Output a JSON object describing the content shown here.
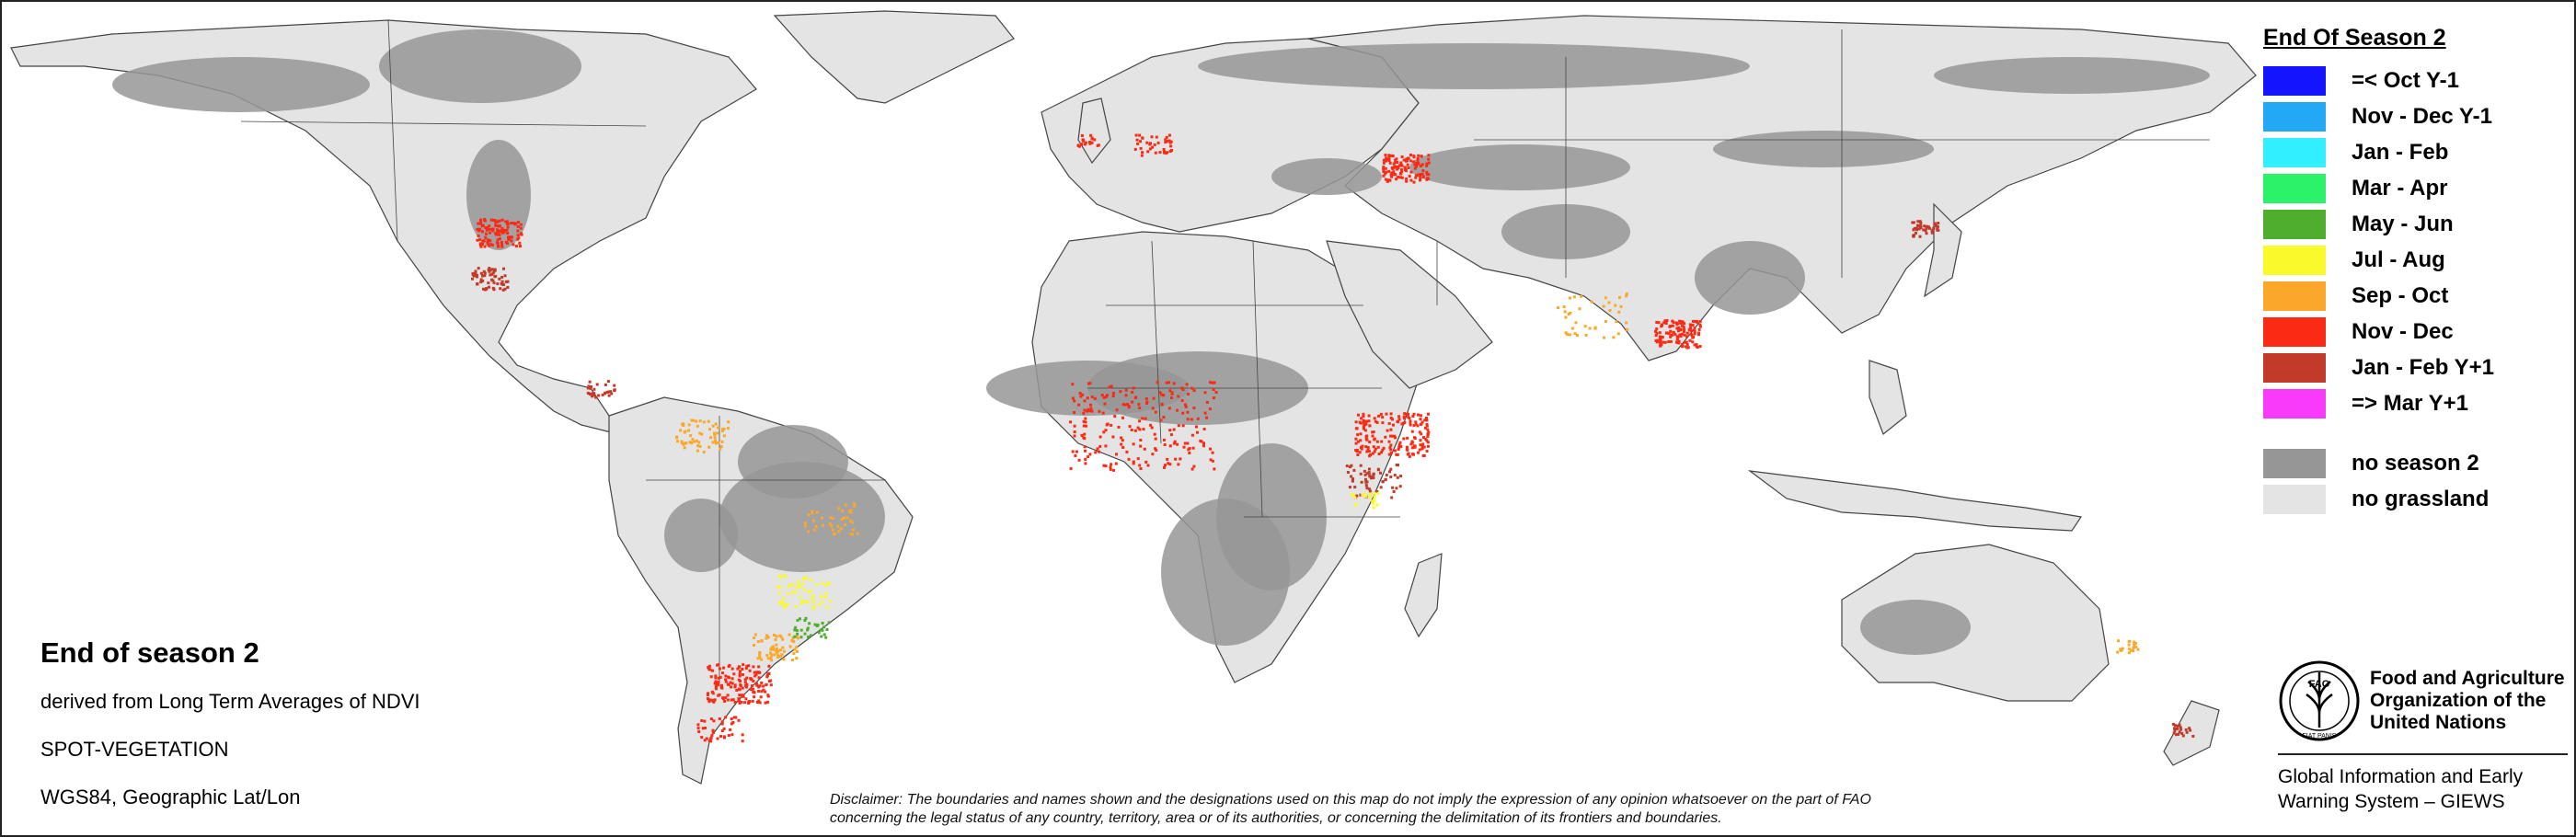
{
  "legend": {
    "title": "End Of Season 2",
    "items": [
      {
        "label": "=< Oct Y-1",
        "color": "#1414ff"
      },
      {
        "label": "Nov - Dec Y-1",
        "color": "#22a8f4"
      },
      {
        "label": "Jan - Feb",
        "color": "#32f0ff"
      },
      {
        "label": "Mar - Apr",
        "color": "#2cf26a"
      },
      {
        "label": "May - Jun",
        "color": "#4fae2e"
      },
      {
        "label": "Jul - Aug",
        "color": "#fafa2a"
      },
      {
        "label": "Sep - Oct",
        "color": "#fba82a"
      },
      {
        "label": "Nov - Dec",
        "color": "#fb2a14"
      },
      {
        "label": "Jan - Feb Y+1",
        "color": "#c23a2a"
      },
      {
        "label": "=> Mar Y+1",
        "color": "#fa3afa"
      }
    ],
    "extra": [
      {
        "label": "no season 2",
        "color": "#969696"
      },
      {
        "label": "no grassland",
        "color": "#e4e4e4"
      }
    ]
  },
  "info": {
    "title": "End of season 2",
    "line1": "derived from Long Term Averages of NDVI",
    "line2": "SPOT-VEGETATION",
    "line3": "WGS84, Geographic Lat/Lon"
  },
  "disclaimer": {
    "line1": "Disclaimer: The boundaries and names shown and the designations used on this map do not imply the expression of any opinion whatsoever on the part of FAO",
    "line2": "concerning the legal status of any country, territory, area or of its authorities, or concerning the delimitation of its frontiers and boundaries."
  },
  "fao": {
    "logo_text": "FAO",
    "motto": "FIAT PANIS",
    "name_line1": "Food and Agriculture",
    "name_line2": "Organization of the",
    "name_line3": "United Nations",
    "giews_line1": "Global Information and Early",
    "giews_line2": "Warning System – GIEWS"
  },
  "map_colors": {
    "land": "#e4e4e4",
    "no_season": "#969696",
    "border": "#444444",
    "ocean": "#ffffff"
  }
}
